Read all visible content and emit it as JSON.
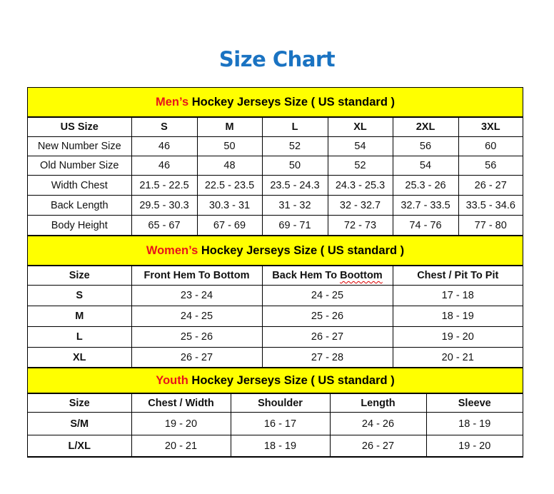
{
  "title": "Size Chart",
  "men": {
    "heading_highlight": "Men’s",
    "heading_rest": " Hockey Jerseys Size ( US standard )",
    "columns": [
      "US Size",
      "S",
      "M",
      "L",
      "XL",
      "2XL",
      "3XL"
    ],
    "rows": [
      [
        "New Number Size",
        "46",
        "50",
        "52",
        "54",
        "56",
        "60"
      ],
      [
        "Old Number Size",
        "46",
        "48",
        "50",
        "52",
        "54",
        "56"
      ],
      [
        "Width Chest",
        "21.5 - 22.5",
        "22.5 - 23.5",
        "23.5 - 24.3",
        "24.3 - 25.3",
        "25.3 - 26",
        "26 - 27"
      ],
      [
        "Back Length",
        "29.5 - 30.3",
        "30.3 - 31",
        "31 - 32",
        "32 - 32.7",
        "32.7 - 33.5",
        "33.5 - 34.6"
      ],
      [
        "Body Height",
        "65 - 67",
        "67 - 69",
        "69 - 71",
        "72 - 73",
        "74 - 76",
        "77 - 80"
      ]
    ]
  },
  "women": {
    "heading_highlight": "Women’s",
    "heading_rest": " Hockey Jerseys Size ( US standard )",
    "columns": [
      "Size",
      "Front Hem To Bottom",
      "Back Hem To Boottom",
      "Chest / Pit To Pit"
    ],
    "rows": [
      [
        "S",
        "23 - 24",
        "24 - 25",
        "17 - 18"
      ],
      [
        "M",
        "24 - 25",
        "25 - 26",
        "18 - 19"
      ],
      [
        "L",
        "25 - 26",
        "26 - 27",
        "19 - 20"
      ],
      [
        "XL",
        "26 - 27",
        "27 - 28",
        "20 - 21"
      ]
    ]
  },
  "youth": {
    "heading_highlight": "Youth",
    "heading_rest": " Hockey Jerseys Size ( US standard )",
    "columns": [
      "Size",
      "Chest / Width",
      "Shoulder",
      "Length",
      "Sleeve"
    ],
    "rows": [
      [
        "S/M",
        "19 - 20",
        "16 - 17",
        "24 - 26",
        "18 - 19"
      ],
      [
        "L/XL",
        "20 - 21",
        "18 - 19",
        "26 - 27",
        "19 - 20"
      ]
    ]
  },
  "colors": {
    "title": "#1a73c2",
    "section_bg": "#ffff00",
    "highlight": "#e8141a"
  }
}
